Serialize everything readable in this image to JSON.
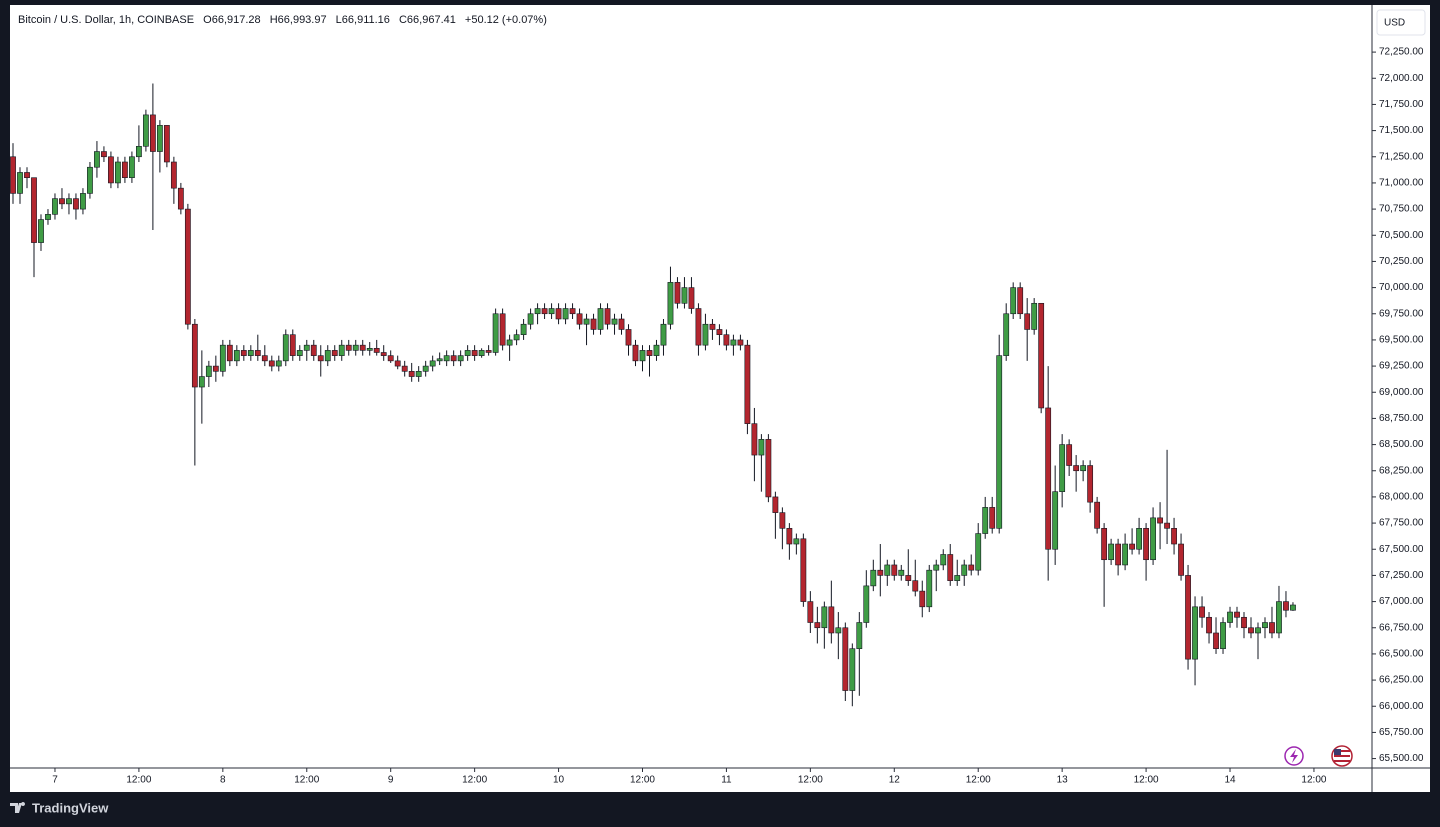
{
  "chart_data": {
    "type": "candlestick",
    "title": "Bitcoin / U.S. Dollar, 1h, COINBASE",
    "ohlc_legend": [
      {
        "label": "O",
        "value": "66,917.28"
      },
      {
        "label": "H",
        "value": "66,993.97"
      },
      {
        "label": "L",
        "value": "66,911.16"
      },
      {
        "label": "C",
        "value": "66,967.41"
      }
    ],
    "change": "+50.12 (+0.07%)",
    "currency": "USD",
    "up_color": "#3f9c45",
    "down_color": "#b3262f",
    "wick_color": "#131722",
    "grid": false,
    "xlim": [
      -0.43,
      194.3
    ],
    "xticks": [
      {
        "value": 6,
        "label": "7"
      },
      {
        "value": 18,
        "label": "12:00"
      },
      {
        "value": 30,
        "label": "8"
      },
      {
        "value": 42,
        "label": "12:00"
      },
      {
        "value": 54,
        "label": "9"
      },
      {
        "value": 66,
        "label": "12:00"
      },
      {
        "value": 78,
        "label": "10"
      },
      {
        "value": 90,
        "label": "12:00"
      },
      {
        "value": 102,
        "label": "11"
      },
      {
        "value": 114,
        "label": "12:00"
      },
      {
        "value": 126,
        "label": "12"
      },
      {
        "value": 138,
        "label": "12:00"
      },
      {
        "value": 150,
        "label": "13"
      },
      {
        "value": 162,
        "label": "12:00"
      },
      {
        "value": 174,
        "label": "14"
      },
      {
        "value": 186,
        "label": "12:00"
      }
    ],
    "ylim": [
      65410,
      72700
    ],
    "yticks": [
      {
        "value": 65500,
        "label": "65,500.00"
      },
      {
        "value": 65750,
        "label": "65,750.00"
      },
      {
        "value": 66000,
        "label": "66,000.00"
      },
      {
        "value": 66250,
        "label": "66,250.00"
      },
      {
        "value": 66500,
        "label": "66,500.00"
      },
      {
        "value": 66750,
        "label": "66,750.00"
      },
      {
        "value": 67000,
        "label": "67,000.00"
      },
      {
        "value": 67250,
        "label": "67,250.00"
      },
      {
        "value": 67500,
        "label": "67,500.00"
      },
      {
        "value": 67750,
        "label": "67,750.00"
      },
      {
        "value": 68000,
        "label": "68,000.00"
      },
      {
        "value": 68250,
        "label": "68,250.00"
      },
      {
        "value": 68500,
        "label": "68,500.00"
      },
      {
        "value": 68750,
        "label": "68,750.00"
      },
      {
        "value": 69000,
        "label": "69,000.00"
      },
      {
        "value": 69250,
        "label": "69,250.00"
      },
      {
        "value": 69500,
        "label": "69,500.00"
      },
      {
        "value": 69750,
        "label": "69,750.00"
      },
      {
        "value": 70000,
        "label": "70,000.00"
      },
      {
        "value": 70250,
        "label": "70,250.00"
      },
      {
        "value": 70500,
        "label": "70,500.00"
      },
      {
        "value": 70750,
        "label": "70,750.00"
      },
      {
        "value": 71000,
        "label": "71,000.00"
      },
      {
        "value": 71250,
        "label": "71,250.00"
      },
      {
        "value": 71500,
        "label": "71,500.00"
      },
      {
        "value": 71750,
        "label": "71,750.00"
      },
      {
        "value": 72000,
        "label": "72,000.00"
      },
      {
        "value": 72250,
        "label": "72,250.00"
      }
    ],
    "ohlc": [
      [
        71250,
        71380,
        70800,
        70900
      ],
      [
        70900,
        71150,
        70800,
        71100
      ],
      [
        71100,
        71150,
        70950,
        71050
      ],
      [
        71050,
        71050,
        70100,
        70430
      ],
      [
        70430,
        70700,
        70350,
        70650
      ],
      [
        70650,
        70750,
        70600,
        70700
      ],
      [
        70700,
        70900,
        70650,
        70850
      ],
      [
        70850,
        70950,
        70750,
        70800
      ],
      [
        70800,
        70900,
        70700,
        70850
      ],
      [
        70850,
        70900,
        70650,
        70750
      ],
      [
        70750,
        70950,
        70700,
        70900
      ],
      [
        70900,
        71200,
        70850,
        71150
      ],
      [
        71150,
        71400,
        71050,
        71300
      ],
      [
        71300,
        71350,
        71200,
        71250
      ],
      [
        71250,
        71300,
        70950,
        71000
      ],
      [
        71000,
        71250,
        70950,
        71200
      ],
      [
        71200,
        71250,
        71000,
        71050
      ],
      [
        71050,
        71300,
        71000,
        71250
      ],
      [
        71250,
        71550,
        71200,
        71350
      ],
      [
        71350,
        71700,
        71300,
        71650
      ],
      [
        71650,
        71950,
        70550,
        71300
      ],
      [
        71300,
        71600,
        71100,
        71550
      ],
      [
        71550,
        71550,
        71150,
        71200
      ],
      [
        71200,
        71250,
        70800,
        70950
      ],
      [
        70950,
        71000,
        70700,
        70750
      ],
      [
        70750,
        70800,
        69600,
        69650
      ],
      [
        69650,
        69700,
        68300,
        69050
      ],
      [
        69050,
        69400,
        68700,
        69150
      ],
      [
        69150,
        69300,
        69050,
        69250
      ],
      [
        69250,
        69350,
        69100,
        69200
      ],
      [
        69200,
        69500,
        69150,
        69450
      ],
      [
        69450,
        69500,
        69250,
        69300
      ],
      [
        69300,
        69450,
        69250,
        69400
      ],
      [
        69400,
        69450,
        69300,
        69350
      ],
      [
        69350,
        69450,
        69300,
        69400
      ],
      [
        69400,
        69550,
        69300,
        69350
      ],
      [
        69350,
        69450,
        69250,
        69300
      ],
      [
        69300,
        69350,
        69200,
        69250
      ],
      [
        69250,
        69350,
        69200,
        69300
      ],
      [
        69300,
        69600,
        69250,
        69550
      ],
      [
        69550,
        69600,
        69300,
        69350
      ],
      [
        69350,
        69450,
        69300,
        69400
      ],
      [
        69400,
        69500,
        69300,
        69450
      ],
      [
        69450,
        69500,
        69300,
        69350
      ],
      [
        69350,
        69450,
        69150,
        69300
      ],
      [
        69300,
        69450,
        69250,
        69400
      ],
      [
        69400,
        69450,
        69300,
        69350
      ],
      [
        69350,
        69500,
        69300,
        69450
      ],
      [
        69450,
        69500,
        69350,
        69400
      ],
      [
        69400,
        69500,
        69350,
        69450
      ],
      [
        69450,
        69500,
        69350,
        69400
      ],
      [
        69400,
        69480,
        69350,
        69420
      ],
      [
        69420,
        69500,
        69350,
        69380
      ],
      [
        69380,
        69450,
        69300,
        69350
      ],
      [
        69350,
        69400,
        69280,
        69300
      ],
      [
        69300,
        69350,
        69220,
        69250
      ],
      [
        69250,
        69300,
        69150,
        69200
      ],
      [
        69200,
        69280,
        69100,
        69150
      ],
      [
        69150,
        69250,
        69100,
        69200
      ],
      [
        69200,
        69300,
        69150,
        69250
      ],
      [
        69250,
        69350,
        69200,
        69300
      ],
      [
        69300,
        69380,
        69260,
        69320
      ],
      [
        69300,
        69400,
        69250,
        69350
      ],
      [
        69350,
        69400,
        69250,
        69300
      ],
      [
        69300,
        69400,
        69250,
        69350
      ],
      [
        69350,
        69450,
        69300,
        69400
      ],
      [
        69400,
        69450,
        69300,
        69350
      ],
      [
        69350,
        69420,
        69330,
        69400
      ],
      [
        69400,
        69450,
        69350,
        69380
      ],
      [
        69380,
        69800,
        69350,
        69750
      ],
      [
        69750,
        69800,
        69400,
        69450
      ],
      [
        69450,
        69550,
        69300,
        69500
      ],
      [
        69500,
        69600,
        69450,
        69550
      ],
      [
        69550,
        69700,
        69500,
        69650
      ],
      [
        69650,
        69800,
        69600,
        69750
      ],
      [
        69750,
        69850,
        69650,
        69800
      ],
      [
        69800,
        69850,
        69700,
        69750
      ],
      [
        69750,
        69850,
        69700,
        69800
      ],
      [
        69800,
        69850,
        69650,
        69700
      ],
      [
        69700,
        69850,
        69650,
        69800
      ],
      [
        69800,
        69850,
        69700,
        69750
      ],
      [
        69750,
        69800,
        69600,
        69650
      ],
      [
        69650,
        69750,
        69450,
        69700
      ],
      [
        69700,
        69750,
        69550,
        69600
      ],
      [
        69600,
        69850,
        69550,
        69800
      ],
      [
        69800,
        69850,
        69600,
        69650
      ],
      [
        69650,
        69750,
        69550,
        69700
      ],
      [
        69700,
        69750,
        69550,
        69600
      ],
      [
        69600,
        69650,
        69350,
        69450
      ],
      [
        69450,
        69500,
        69250,
        69300
      ],
      [
        69300,
        69450,
        69200,
        69400
      ],
      [
        69400,
        69450,
        69150,
        69350
      ],
      [
        69350,
        69500,
        69300,
        69450
      ],
      [
        69450,
        69700,
        69350,
        69650
      ],
      [
        69650,
        70200,
        69600,
        70050
      ],
      [
        70050,
        70100,
        69800,
        69850
      ],
      [
        69850,
        70100,
        69800,
        70000
      ],
      [
        70000,
        70100,
        69750,
        69800
      ],
      [
        69800,
        69850,
        69350,
        69450
      ],
      [
        69450,
        69750,
        69400,
        69650
      ],
      [
        69650,
        69700,
        69500,
        69600
      ],
      [
        69600,
        69650,
        69450,
        69550
      ],
      [
        69550,
        69600,
        69400,
        69450
      ],
      [
        69450,
        69550,
        69350,
        69500
      ],
      [
        69500,
        69550,
        69400,
        69450
      ],
      [
        69450,
        69500,
        68600,
        68700
      ],
      [
        68700,
        68850,
        68150,
        68400
      ],
      [
        68400,
        68600,
        68050,
        68550
      ],
      [
        68550,
        68600,
        67950,
        68000
      ],
      [
        68000,
        68050,
        67600,
        67850
      ],
      [
        67850,
        67900,
        67500,
        67700
      ],
      [
        67700,
        67750,
        67400,
        67550
      ],
      [
        67550,
        67650,
        67450,
        67600
      ],
      [
        67600,
        67650,
        66950,
        67000
      ],
      [
        67000,
        67100,
        66700,
        66800
      ],
      [
        66800,
        66950,
        66600,
        66750
      ],
      [
        66750,
        67000,
        66550,
        66950
      ],
      [
        66950,
        67200,
        66600,
        66700
      ],
      [
        66700,
        66900,
        66450,
        66750
      ],
      [
        66750,
        66800,
        66050,
        66150
      ],
      [
        66150,
        66600,
        66000,
        66550
      ],
      [
        66550,
        66900,
        66100,
        66800
      ],
      [
        66800,
        67300,
        66750,
        67150
      ],
      [
        67150,
        67400,
        67100,
        67300
      ],
      [
        67300,
        67550,
        67050,
        67250
      ],
      [
        67250,
        67400,
        67150,
        67350
      ],
      [
        67350,
        67400,
        67200,
        67250
      ],
      [
        67250,
        67350,
        67200,
        67300
      ],
      [
        67250,
        67500,
        67150,
        67200
      ],
      [
        67200,
        67400,
        67050,
        67100
      ],
      [
        67100,
        67200,
        66850,
        66950
      ],
      [
        66950,
        67350,
        66900,
        67300
      ],
      [
        67300,
        67400,
        67100,
        67350
      ],
      [
        67350,
        67500,
        67300,
        67450
      ],
      [
        67450,
        67550,
        67150,
        67200
      ],
      [
        67200,
        67400,
        67150,
        67250
      ],
      [
        67250,
        67400,
        67150,
        67350
      ],
      [
        67350,
        67450,
        67250,
        67300
      ],
      [
        67300,
        67750,
        67250,
        67650
      ],
      [
        67650,
        68000,
        67600,
        67900
      ],
      [
        67900,
        68000,
        67650,
        67700
      ],
      [
        67700,
        69550,
        67650,
        69350
      ],
      [
        69350,
        69850,
        69300,
        69750
      ],
      [
        69750,
        70050,
        69700,
        70000
      ],
      [
        70000,
        70050,
        69700,
        69750
      ],
      [
        69750,
        69900,
        69300,
        69600
      ],
      [
        69600,
        69900,
        69550,
        69850
      ],
      [
        69850,
        69850,
        68800,
        68850
      ],
      [
        68850,
        69250,
        67200,
        67500
      ],
      [
        67500,
        68300,
        67350,
        68050
      ],
      [
        68050,
        68600,
        67900,
        68500
      ],
      [
        68500,
        68550,
        68200,
        68300
      ],
      [
        68300,
        68400,
        68050,
        68250
      ],
      [
        68250,
        68350,
        68150,
        68300
      ],
      [
        68300,
        68350,
        67850,
        67950
      ],
      [
        67950,
        68000,
        67650,
        67700
      ],
      [
        67700,
        67750,
        66950,
        67400
      ],
      [
        67400,
        67600,
        67350,
        67550
      ],
      [
        67550,
        67600,
        67250,
        67350
      ],
      [
        67350,
        67650,
        67300,
        67550
      ],
      [
        67550,
        67700,
        67450,
        67500
      ],
      [
        67500,
        67800,
        67450,
        67700
      ],
      [
        67700,
        67750,
        67200,
        67400
      ],
      [
        67400,
        67900,
        67350,
        67800
      ],
      [
        67800,
        67950,
        67500,
        67750
      ],
      [
        67750,
        68450,
        67550,
        67700
      ],
      [
        67700,
        67800,
        67450,
        67550
      ],
      [
        67550,
        67650,
        67200,
        67250
      ],
      [
        67250,
        67350,
        66350,
        66450
      ],
      [
        66450,
        67050,
        66200,
        66950
      ],
      [
        66950,
        67050,
        66750,
        66850
      ],
      [
        66850,
        66900,
        66600,
        66700
      ],
      [
        66700,
        66850,
        66500,
        66550
      ],
      [
        66550,
        66850,
        66500,
        66800
      ],
      [
        66800,
        66950,
        66750,
        66900
      ],
      [
        66900,
        66950,
        66750,
        66850
      ],
      [
        66850,
        66900,
        66650,
        66750
      ],
      [
        66750,
        66850,
        66650,
        66700
      ],
      [
        66700,
        66800,
        66450,
        66750
      ],
      [
        66750,
        66850,
        66650,
        66800
      ],
      [
        66800,
        66950,
        66650,
        66700
      ],
      [
        66700,
        67150,
        66650,
        67000
      ],
      [
        67000,
        67100,
        66850,
        66917.28
      ],
      [
        66917.28,
        66993.97,
        66911.16,
        66967.41
      ]
    ]
  },
  "brand": "TradingView"
}
